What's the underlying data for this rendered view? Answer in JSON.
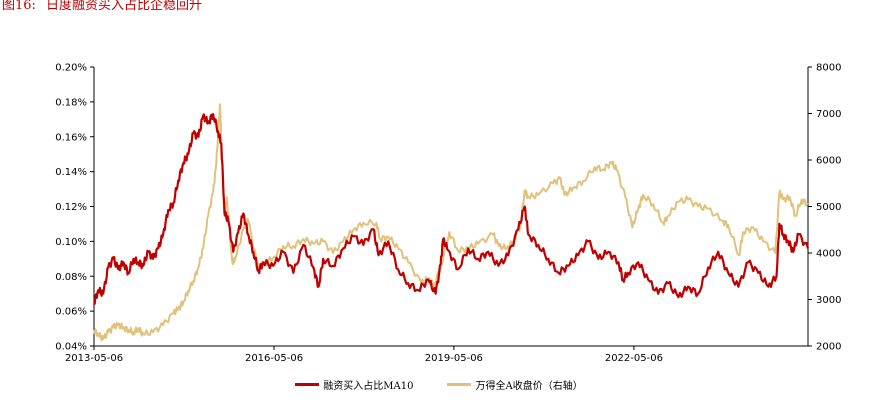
{
  "figure": {
    "number": "图16:",
    "title": "日度融资买入占比企稳回升"
  },
  "chart_data": {
    "type": "line",
    "x_ticks": [
      "2013-05-06",
      "2016-05-06",
      "2019-05-06",
      "2022-05-06"
    ],
    "x_range": [
      "2013-05-06",
      "2025-03-31"
    ],
    "y_left_ticks": [
      "0.04%",
      "0.06%",
      "0.08%",
      "0.10%",
      "0.12%",
      "0.14%",
      "0.16%",
      "0.18%",
      "0.20%"
    ],
    "y_left_range": [
      0.04,
      0.2
    ],
    "y_right_ticks": [
      "2000",
      "3000",
      "4000",
      "5000",
      "6000",
      "7000",
      "8000"
    ],
    "y_right_range": [
      2000,
      8000
    ],
    "legend_position": "bottom",
    "grid": false,
    "series": [
      {
        "name": "融资买入占比MA10",
        "axis": "left",
        "unit": "%",
        "color": "#c00000",
        "points": [
          [
            "2013-05-06",
            0.065
          ],
          [
            "2013-06-01",
            0.072
          ],
          [
            "2013-07-01",
            0.07
          ],
          [
            "2013-08-01",
            0.085
          ],
          [
            "2013-09-01",
            0.09
          ],
          [
            "2013-10-01",
            0.084
          ],
          [
            "2013-11-01",
            0.088
          ],
          [
            "2013-12-01",
            0.082
          ],
          [
            "2014-01-01",
            0.09
          ],
          [
            "2014-02-01",
            0.088
          ],
          [
            "2014-03-01",
            0.086
          ],
          [
            "2014-04-01",
            0.094
          ],
          [
            "2014-05-01",
            0.09
          ],
          [
            "2014-06-01",
            0.096
          ],
          [
            "2014-07-01",
            0.104
          ],
          [
            "2014-08-01",
            0.118
          ],
          [
            "2014-09-01",
            0.122
          ],
          [
            "2014-10-01",
            0.135
          ],
          [
            "2014-11-01",
            0.145
          ],
          [
            "2014-12-01",
            0.15
          ],
          [
            "2015-01-01",
            0.162
          ],
          [
            "2015-02-01",
            0.16
          ],
          [
            "2015-03-01",
            0.172
          ],
          [
            "2015-04-01",
            0.168
          ],
          [
            "2015-05-01",
            0.173
          ],
          [
            "2015-06-01",
            0.163
          ],
          [
            "2015-06-20",
            0.156
          ],
          [
            "2015-07-10",
            0.116
          ],
          [
            "2015-08-01",
            0.112
          ],
          [
            "2015-09-01",
            0.094
          ],
          [
            "2015-10-01",
            0.105
          ],
          [
            "2015-11-01",
            0.116
          ],
          [
            "2015-12-01",
            0.104
          ],
          [
            "2016-01-01",
            0.094
          ],
          [
            "2016-02-01",
            0.083
          ],
          [
            "2016-03-01",
            0.088
          ],
          [
            "2016-05-01",
            0.086
          ],
          [
            "2016-07-01",
            0.094
          ],
          [
            "2016-09-01",
            0.082
          ],
          [
            "2016-11-01",
            0.098
          ],
          [
            "2017-01-01",
            0.085
          ],
          [
            "2017-02-01",
            0.074
          ],
          [
            "2017-03-01",
            0.09
          ],
          [
            "2017-05-01",
            0.086
          ],
          [
            "2017-07-01",
            0.096
          ],
          [
            "2017-09-01",
            0.103
          ],
          [
            "2017-11-01",
            0.098
          ],
          [
            "2018-01-01",
            0.107
          ],
          [
            "2018-02-01",
            0.092
          ],
          [
            "2018-04-01",
            0.1
          ],
          [
            "2018-06-01",
            0.084
          ],
          [
            "2018-08-01",
            0.076
          ],
          [
            "2018-10-01",
            0.072
          ],
          [
            "2018-12-01",
            0.078
          ],
          [
            "2019-01-15",
            0.07
          ],
          [
            "2019-02-15",
            0.087
          ],
          [
            "2019-03-01",
            0.101
          ],
          [
            "2019-04-01",
            0.095
          ],
          [
            "2019-06-01",
            0.084
          ],
          [
            "2019-08-01",
            0.096
          ],
          [
            "2019-10-01",
            0.09
          ],
          [
            "2019-12-01",
            0.094
          ],
          [
            "2020-02-01",
            0.086
          ],
          [
            "2020-04-01",
            0.092
          ],
          [
            "2020-06-01",
            0.107
          ],
          [
            "2020-07-10",
            0.12
          ],
          [
            "2020-08-01",
            0.104
          ],
          [
            "2020-10-01",
            0.098
          ],
          [
            "2020-12-01",
            0.09
          ],
          [
            "2021-02-01",
            0.082
          ],
          [
            "2021-04-01",
            0.086
          ],
          [
            "2021-06-01",
            0.092
          ],
          [
            "2021-08-01",
            0.1
          ],
          [
            "2021-10-01",
            0.09
          ],
          [
            "2021-12-01",
            0.094
          ],
          [
            "2022-02-01",
            0.088
          ],
          [
            "2022-03-01",
            0.078
          ],
          [
            "2022-04-01",
            0.082
          ],
          [
            "2022-06-01",
            0.088
          ],
          [
            "2022-08-01",
            0.078
          ],
          [
            "2022-10-01",
            0.07
          ],
          [
            "2022-12-01",
            0.076
          ],
          [
            "2023-02-01",
            0.068
          ],
          [
            "2023-04-01",
            0.074
          ],
          [
            "2023-06-01",
            0.07
          ],
          [
            "2023-08-01",
            0.085
          ],
          [
            "2023-10-01",
            0.094
          ],
          [
            "2023-12-01",
            0.082
          ],
          [
            "2024-02-01",
            0.074
          ],
          [
            "2024-04-01",
            0.088
          ],
          [
            "2024-06-01",
            0.082
          ],
          [
            "2024-08-01",
            0.074
          ],
          [
            "2024-09-20",
            0.08
          ],
          [
            "2024-10-08",
            0.11
          ],
          [
            "2024-11-01",
            0.104
          ],
          [
            "2024-12-01",
            0.1
          ],
          [
            "2025-01-01",
            0.094
          ],
          [
            "2025-02-01",
            0.104
          ],
          [
            "2025-03-31",
            0.096
          ]
        ]
      },
      {
        "name": "万得全A收盘价（右轴）",
        "axis": "right",
        "color": "#e0c27d",
        "points": [
          [
            "2013-05-06",
            2350
          ],
          [
            "2013-06-01",
            2250
          ],
          [
            "2013-07-01",
            2150
          ],
          [
            "2013-08-01",
            2300
          ],
          [
            "2013-09-01",
            2400
          ],
          [
            "2013-10-01",
            2450
          ],
          [
            "2013-11-01",
            2400
          ],
          [
            "2013-12-01",
            2350
          ],
          [
            "2014-01-01",
            2300
          ],
          [
            "2014-02-01",
            2380
          ],
          [
            "2014-03-01",
            2250
          ],
          [
            "2014-05-01",
            2300
          ],
          [
            "2014-07-01",
            2450
          ],
          [
            "2014-09-01",
            2700
          ],
          [
            "2014-10-01",
            2800
          ],
          [
            "2014-11-01",
            2950
          ],
          [
            "2014-12-01",
            3200
          ],
          [
            "2015-01-01",
            3400
          ],
          [
            "2015-02-01",
            3700
          ],
          [
            "2015-03-01",
            4100
          ],
          [
            "2015-04-01",
            4800
          ],
          [
            "2015-05-01",
            5300
          ],
          [
            "2015-05-20",
            5900
          ],
          [
            "2015-06-12",
            7200
          ],
          [
            "2015-07-08",
            4800
          ],
          [
            "2015-07-24",
            5200
          ],
          [
            "2015-08-26",
            3800
          ],
          [
            "2015-09-15",
            3900
          ],
          [
            "2015-11-01",
            4500
          ],
          [
            "2015-12-01",
            4700
          ],
          [
            "2016-01-28",
            3700
          ],
          [
            "2016-03-01",
            3750
          ],
          [
            "2016-05-01",
            3900
          ],
          [
            "2016-07-01",
            4150
          ],
          [
            "2016-09-01",
            4150
          ],
          [
            "2016-11-01",
            4300
          ],
          [
            "2017-01-01",
            4200
          ],
          [
            "2017-03-01",
            4250
          ],
          [
            "2017-05-01",
            4000
          ],
          [
            "2017-07-01",
            4250
          ],
          [
            "2017-09-01",
            4500
          ],
          [
            "2017-11-01",
            4650
          ],
          [
            "2018-01-20",
            4650
          ],
          [
            "2018-02-10",
            4300
          ],
          [
            "2018-04-01",
            4350
          ],
          [
            "2018-06-01",
            4100
          ],
          [
            "2018-08-01",
            3800
          ],
          [
            "2018-10-20",
            3350
          ],
          [
            "2018-12-01",
            3450
          ],
          [
            "2019-01-04",
            3300
          ],
          [
            "2019-02-15",
            3700
          ],
          [
            "2019-04-08",
            4450
          ],
          [
            "2019-06-01",
            4050
          ],
          [
            "2019-08-01",
            4100
          ],
          [
            "2019-10-01",
            4200
          ],
          [
            "2019-12-31",
            4400
          ],
          [
            "2020-02-03",
            4150
          ],
          [
            "2020-03-23",
            4100
          ],
          [
            "2020-05-01",
            4250
          ],
          [
            "2020-06-15",
            4600
          ],
          [
            "2020-07-10",
            5350
          ],
          [
            "2020-08-01",
            5200
          ],
          [
            "2020-10-01",
            5250
          ],
          [
            "2020-12-31",
            5500
          ],
          [
            "2021-02-10",
            5600
          ],
          [
            "2021-03-10",
            5250
          ],
          [
            "2021-05-01",
            5400
          ],
          [
            "2021-07-01",
            5550
          ],
          [
            "2021-09-10",
            5850
          ],
          [
            "2021-11-01",
            5800
          ],
          [
            "2021-12-20",
            5950
          ],
          [
            "2022-01-20",
            5800
          ],
          [
            "2022-03-15",
            5200
          ],
          [
            "2022-04-27",
            4550
          ],
          [
            "2022-06-01",
            4950
          ],
          [
            "2022-07-01",
            5250
          ],
          [
            "2022-09-01",
            5050
          ],
          [
            "2022-10-31",
            4650
          ],
          [
            "2022-12-01",
            4800
          ],
          [
            "2023-02-01",
            5100
          ],
          [
            "2023-04-01",
            5150
          ],
          [
            "2023-06-01",
            5000
          ],
          [
            "2023-08-01",
            4950
          ],
          [
            "2023-10-25",
            4700
          ],
          [
            "2023-12-01",
            4600
          ],
          [
            "2024-02-05",
            3950
          ],
          [
            "2024-03-01",
            4450
          ],
          [
            "2024-05-01",
            4550
          ],
          [
            "2024-07-01",
            4250
          ],
          [
            "2024-09-13",
            4000
          ],
          [
            "2024-10-08",
            5300
          ],
          [
            "2024-11-01",
            5150
          ],
          [
            "2024-12-10",
            5200
          ],
          [
            "2025-01-13",
            4800
          ],
          [
            "2025-02-20",
            5150
          ],
          [
            "2025-03-31",
            5050
          ]
        ]
      }
    ]
  }
}
